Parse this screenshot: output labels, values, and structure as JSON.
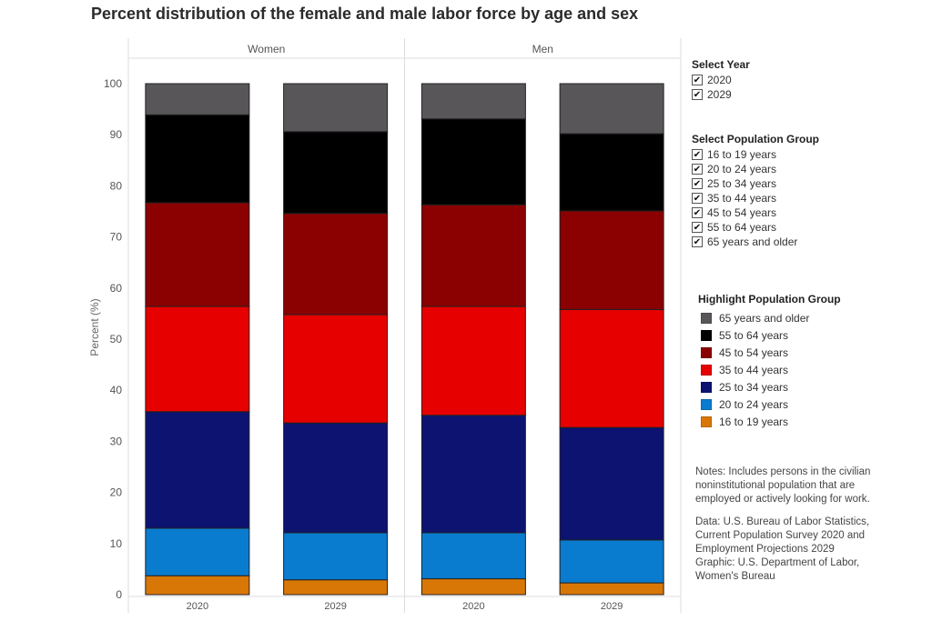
{
  "title": "Percent distribution of the female and male labor force by age and sex",
  "filters": {
    "year": {
      "title": "Select Year",
      "options": [
        {
          "label": "2020",
          "checked": true
        },
        {
          "label": "2029",
          "checked": true
        }
      ]
    },
    "population": {
      "title": "Select Population Group",
      "options": [
        {
          "label": "16 to 19 years",
          "checked": true
        },
        {
          "label": "20 to 24 years",
          "checked": true
        },
        {
          "label": "25 to 34 years",
          "checked": true
        },
        {
          "label": "35 to 44 years",
          "checked": true
        },
        {
          "label": "45 to 54 years",
          "checked": true
        },
        {
          "label": "55 to 64 years",
          "checked": true
        },
        {
          "label": "65 years and older",
          "checked": true
        }
      ]
    }
  },
  "check_glyph": "✔",
  "highlight": {
    "title": "Highlight Population Group",
    "items": [
      {
        "label": "65 years and older",
        "color": "#59565a"
      },
      {
        "label": "55 to 64 years",
        "color": "#000000"
      },
      {
        "label": "45 to 54 years",
        "color": "#8b0000"
      },
      {
        "label": "35 to 44 years",
        "color": "#e60000"
      },
      {
        "label": "25 to 34 years",
        "color": "#0c1370"
      },
      {
        "label": "20 to 24 years",
        "color": "#0a7ccf"
      },
      {
        "label": "16 to 19 years",
        "color": "#d97706"
      }
    ]
  },
  "notes": "Notes: Includes persons in the civilian noninstitutional population that are employed or actively looking for work.",
  "source": "Data: U.S. Bureau of Labor Statistics, Current Population Survey 2020 and Employment Projections 2029\nGraphic: U.S. Department of Labor, Women's Bureau",
  "chart_data": {
    "type": "bar",
    "stacked": true,
    "ylabel": "Percent (%)",
    "ylim": [
      0,
      100
    ],
    "yticks": [
      0,
      10,
      20,
      30,
      40,
      50,
      60,
      70,
      80,
      90,
      100
    ],
    "grid": false,
    "legend": "right",
    "panels": [
      {
        "label": "Women",
        "categories": [
          "2020",
          "2029"
        ]
      },
      {
        "label": "Men",
        "categories": [
          "2020",
          "2029"
        ]
      }
    ],
    "series": [
      {
        "name": "16 to 19 years",
        "color": "#d97706",
        "values": [
          [
            3.7,
            2.9
          ],
          [
            3.1,
            2.3
          ]
        ]
      },
      {
        "name": "20 to 24 years",
        "color": "#0a7ccf",
        "values": [
          [
            9.3,
            9.2
          ],
          [
            9.0,
            8.4
          ]
        ]
      },
      {
        "name": "25 to 34 years",
        "color": "#0c1370",
        "values": [
          [
            22.8,
            21.5
          ],
          [
            23.0,
            22.0
          ]
        ]
      },
      {
        "name": "35 to 44 years",
        "color": "#e60000",
        "values": [
          [
            20.6,
            21.2
          ],
          [
            21.3,
            23.1
          ]
        ]
      },
      {
        "name": "45 to 54 years",
        "color": "#8b0000",
        "values": [
          [
            20.3,
            19.8
          ],
          [
            19.9,
            19.3
          ]
        ]
      },
      {
        "name": "55 to 64 years",
        "color": "#000000",
        "values": [
          [
            17.2,
            16.0
          ],
          [
            16.8,
            15.1
          ]
        ]
      },
      {
        "name": "65 years and older",
        "color": "#59565a",
        "values": [
          [
            6.1,
            9.4
          ],
          [
            6.9,
            9.8
          ]
        ]
      }
    ]
  }
}
